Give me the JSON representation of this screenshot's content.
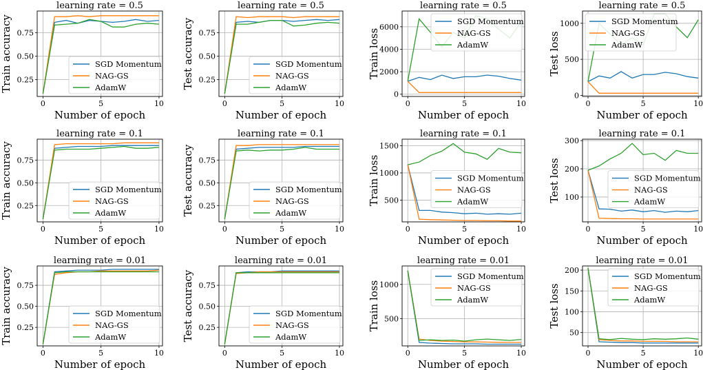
{
  "colors": {
    "SGD Momentum": "#1f77b4",
    "NAG-GS": "#ff7f0e",
    "AdamW": "#2ca02c",
    "grid": "#b0b0b0",
    "axes": "#000000"
  },
  "legend_labels": [
    "SGD Momentum",
    "NAG-GS",
    "AdamW"
  ],
  "chart_data": [
    {
      "type": "line",
      "title": "learning rate = 0.5",
      "xlabel": "Number of epoch",
      "ylabel": "Train accuracy",
      "xlim": [
        -0.5,
        10.3
      ],
      "ylim": [
        0.07,
        0.98
      ],
      "xticks": [
        0,
        5,
        10
      ],
      "yticks": [
        0.25,
        0.5,
        0.75
      ],
      "ytick_labels": [
        "0.25",
        "0.50",
        "0.75"
      ],
      "grid": true,
      "legend": "lower-right",
      "x": [
        0,
        1,
        2,
        3,
        4,
        5,
        6,
        7,
        8,
        9,
        10
      ],
      "series": [
        {
          "name": "SGD Momentum",
          "values": [
            0.1,
            0.86,
            0.88,
            0.85,
            0.88,
            0.87,
            0.86,
            0.87,
            0.89,
            0.87,
            0.88
          ]
        },
        {
          "name": "NAG-GS",
          "values": [
            0.1,
            0.92,
            0.92,
            0.93,
            0.92,
            0.93,
            0.93,
            0.93,
            0.93,
            0.93,
            0.93
          ]
        },
        {
          "name": "AdamW",
          "values": [
            0.1,
            0.83,
            0.84,
            0.85,
            0.89,
            0.87,
            0.81,
            0.81,
            0.84,
            0.85,
            0.84
          ]
        }
      ]
    },
    {
      "type": "line",
      "title": "learning rate = 0.5",
      "xlabel": "Number of epoch",
      "ylabel": "Test accuracy",
      "xlim": [
        -0.5,
        10.3
      ],
      "ylim": [
        0.07,
        0.98
      ],
      "xticks": [
        0,
        5,
        10
      ],
      "yticks": [
        0.25,
        0.5,
        0.75
      ],
      "ytick_labels": [
        "0.25",
        "0.50",
        "0.75"
      ],
      "grid": true,
      "legend": "lower-right",
      "x": [
        0,
        1,
        2,
        3,
        4,
        5,
        6,
        7,
        8,
        9,
        10
      ],
      "series": [
        {
          "name": "SGD Momentum",
          "values": [
            0.1,
            0.86,
            0.87,
            0.86,
            0.88,
            0.88,
            0.87,
            0.88,
            0.89,
            0.88,
            0.89
          ]
        },
        {
          "name": "NAG-GS",
          "values": [
            0.1,
            0.92,
            0.91,
            0.92,
            0.92,
            0.92,
            0.91,
            0.92,
            0.92,
            0.92,
            0.92
          ]
        },
        {
          "name": "AdamW",
          "values": [
            0.1,
            0.84,
            0.84,
            0.86,
            0.88,
            0.88,
            0.82,
            0.83,
            0.85,
            0.86,
            0.85
          ]
        }
      ]
    },
    {
      "type": "line",
      "title": "learning rate = 0.5",
      "xlabel": "Number of epoch",
      "ylabel": "Train loss",
      "xlim": [
        -0.5,
        10.3
      ],
      "ylim": [
        -200,
        7400
      ],
      "xticks": [
        0,
        5,
        10
      ],
      "yticks": [
        0,
        2000,
        4000,
        6000
      ],
      "ytick_labels": [
        "0",
        "2000",
        "4000",
        "6000"
      ],
      "grid": true,
      "legend": "upper-right",
      "x": [
        0,
        1,
        2,
        3,
        4,
        5,
        6,
        7,
        8,
        9,
        10
      ],
      "series": [
        {
          "name": "SGD Momentum",
          "values": [
            1150,
            1500,
            1300,
            1700,
            1400,
            1550,
            1550,
            1700,
            1600,
            1400,
            1250
          ]
        },
        {
          "name": "NAG-GS",
          "values": [
            1150,
            150,
            150,
            150,
            150,
            150,
            150,
            150,
            150,
            150,
            150
          ]
        },
        {
          "name": "AdamW",
          "values": [
            1150,
            6700,
            5500,
            4200,
            5500,
            5000,
            7000,
            6700,
            5800,
            5000,
            6500
          ]
        }
      ]
    },
    {
      "type": "line",
      "title": "learning rate = 0.5",
      "xlabel": "Number of epoch",
      "ylabel": "Test loss",
      "xlim": [
        -0.5,
        10.3
      ],
      "ylim": [
        -15,
        1170
      ],
      "xticks": [
        0,
        5,
        10
      ],
      "yticks": [
        0,
        500,
        1000
      ],
      "ytick_labels": [
        "0",
        "500",
        "1000"
      ],
      "grid": true,
      "legend": "upper-left",
      "x": [
        0,
        1,
        2,
        3,
        4,
        5,
        6,
        7,
        8,
        9,
        10
      ],
      "series": [
        {
          "name": "SGD Momentum",
          "values": [
            190,
            270,
            240,
            330,
            240,
            290,
            290,
            320,
            300,
            260,
            240
          ]
        },
        {
          "name": "NAG-GS",
          "values": [
            190,
            30,
            30,
            30,
            30,
            30,
            30,
            30,
            30,
            30,
            30
          ]
        },
        {
          "name": "AdamW",
          "values": [
            190,
            1000,
            850,
            700,
            800,
            700,
            1130,
            1130,
            950,
            800,
            1050
          ]
        }
      ]
    },
    {
      "type": "line",
      "title": "learning rate = 0.1",
      "xlabel": "Number of epoch",
      "ylabel": "Train accuracy",
      "xlim": [
        -0.5,
        10.3
      ],
      "ylim": [
        0.07,
        0.98
      ],
      "xticks": [
        0,
        5,
        10
      ],
      "yticks": [
        0.25,
        0.5,
        0.75
      ],
      "ytick_labels": [
        "0.25",
        "0.50",
        "0.75"
      ],
      "grid": true,
      "legend": "lower-right",
      "x": [
        0,
        1,
        2,
        3,
        4,
        5,
        6,
        7,
        8,
        9,
        10
      ],
      "series": [
        {
          "name": "SGD Momentum",
          "values": [
            0.1,
            0.88,
            0.89,
            0.9,
            0.9,
            0.9,
            0.91,
            0.91,
            0.91,
            0.91,
            0.91
          ]
        },
        {
          "name": "NAG-GS",
          "values": [
            0.1,
            0.92,
            0.93,
            0.93,
            0.93,
            0.93,
            0.93,
            0.94,
            0.94,
            0.94,
            0.94
          ]
        },
        {
          "name": "AdamW",
          "values": [
            0.1,
            0.86,
            0.87,
            0.87,
            0.87,
            0.88,
            0.89,
            0.9,
            0.88,
            0.88,
            0.89
          ]
        }
      ]
    },
    {
      "type": "line",
      "title": "learning rate = 0.1",
      "xlabel": "Number of epoch",
      "ylabel": "Test accuracy",
      "xlim": [
        -0.5,
        10.3
      ],
      "ylim": [
        0.07,
        0.98
      ],
      "xticks": [
        0,
        5,
        10
      ],
      "yticks": [
        0.25,
        0.5,
        0.75
      ],
      "ytick_labels": [
        "0.25",
        "0.50",
        "0.75"
      ],
      "grid": true,
      "legend": "lower-right",
      "x": [
        0,
        1,
        2,
        3,
        4,
        5,
        6,
        7,
        8,
        9,
        10
      ],
      "series": [
        {
          "name": "SGD Momentum",
          "values": [
            0.1,
            0.87,
            0.88,
            0.89,
            0.89,
            0.89,
            0.89,
            0.9,
            0.9,
            0.9,
            0.9
          ]
        },
        {
          "name": "NAG-GS",
          "values": [
            0.1,
            0.91,
            0.91,
            0.92,
            0.92,
            0.92,
            0.92,
            0.92,
            0.92,
            0.92,
            0.92
          ]
        },
        {
          "name": "AdamW",
          "values": [
            0.1,
            0.85,
            0.86,
            0.85,
            0.86,
            0.86,
            0.87,
            0.89,
            0.87,
            0.87,
            0.87
          ]
        }
      ]
    },
    {
      "type": "line",
      "title": "learning rate = 0.1",
      "xlabel": "Number of epoch",
      "ylabel": "Train loss",
      "xlim": [
        -0.5,
        10.3
      ],
      "ylim": [
        100,
        1620
      ],
      "xticks": [
        0,
        5,
        10
      ],
      "yticks": [
        500,
        1000,
        1500
      ],
      "ytick_labels": [
        "500",
        "1000",
        "1500"
      ],
      "grid": true,
      "legend": "center-right",
      "x": [
        0,
        1,
        2,
        3,
        4,
        5,
        6,
        7,
        8,
        9,
        10
      ],
      "series": [
        {
          "name": "SGD Momentum",
          "values": [
            1150,
            310,
            310,
            280,
            270,
            250,
            260,
            240,
            250,
            240,
            260
          ]
        },
        {
          "name": "NAG-GS",
          "values": [
            1150,
            150,
            140,
            135,
            130,
            125,
            125,
            120,
            120,
            115,
            115
          ]
        },
        {
          "name": "AdamW",
          "values": [
            1150,
            1200,
            1320,
            1400,
            1540,
            1380,
            1350,
            1250,
            1450,
            1380,
            1370
          ]
        }
      ]
    },
    {
      "type": "line",
      "title": "learning rate = 0.1",
      "xlabel": "Number of epoch",
      "ylabel": "Test loss",
      "xlim": [
        -0.5,
        10.3
      ],
      "ylim": [
        12,
        305
      ],
      "xticks": [
        0,
        5,
        10
      ],
      "yticks": [
        100,
        200,
        300
      ],
      "ytick_labels": [
        "100",
        "200",
        "300"
      ],
      "grid": true,
      "legend": "center-right",
      "x": [
        0,
        1,
        2,
        3,
        4,
        5,
        6,
        7,
        8,
        9,
        10
      ],
      "series": [
        {
          "name": "SGD Momentum",
          "values": [
            195,
            58,
            57,
            50,
            54,
            48,
            52,
            46,
            50,
            48,
            52
          ]
        },
        {
          "name": "NAG-GS",
          "values": [
            195,
            25,
            24,
            23,
            23,
            22,
            22,
            22,
            22,
            22,
            22
          ]
        },
        {
          "name": "AdamW",
          "values": [
            195,
            210,
            235,
            255,
            290,
            250,
            255,
            230,
            265,
            255,
            255
          ]
        }
      ]
    },
    {
      "type": "line",
      "title": "learning rate = 0.01",
      "xlabel": "Number of epoch",
      "ylabel": "Train accuracy",
      "xlim": [
        -0.5,
        10.3
      ],
      "ylim": [
        0.03,
        0.98
      ],
      "xticks": [
        0,
        5,
        10
      ],
      "yticks": [
        0.25,
        0.5,
        0.75
      ],
      "ytick_labels": [
        "0.25",
        "0.50",
        "0.75"
      ],
      "grid": true,
      "legend": "lower-right",
      "x": [
        0,
        1,
        2,
        3,
        4,
        5,
        6,
        7,
        8,
        9,
        10
      ],
      "series": [
        {
          "name": "SGD Momentum",
          "values": [
            0.05,
            0.91,
            0.92,
            0.93,
            0.93,
            0.93,
            0.94,
            0.94,
            0.94,
            0.94,
            0.94
          ]
        },
        {
          "name": "NAG-GS",
          "values": [
            0.05,
            0.88,
            0.9,
            0.91,
            0.91,
            0.92,
            0.92,
            0.92,
            0.92,
            0.92,
            0.93
          ]
        },
        {
          "name": "AdamW",
          "values": [
            0.05,
            0.9,
            0.91,
            0.91,
            0.91,
            0.91,
            0.91,
            0.91,
            0.91,
            0.91,
            0.91
          ]
        }
      ]
    },
    {
      "type": "line",
      "title": "learning rate = 0.01",
      "xlabel": "Number of epoch",
      "ylabel": "Test accuracy",
      "xlim": [
        -0.5,
        10.3
      ],
      "ylim": [
        0.03,
        0.98
      ],
      "xticks": [
        0,
        5,
        10
      ],
      "yticks": [
        0.25,
        0.5,
        0.75
      ],
      "ytick_labels": [
        "0.25",
        "0.50",
        "0.75"
      ],
      "grid": true,
      "legend": "lower-right",
      "x": [
        0,
        1,
        2,
        3,
        4,
        5,
        6,
        7,
        8,
        9,
        10
      ],
      "series": [
        {
          "name": "SGD Momentum",
          "values": [
            0.05,
            0.9,
            0.91,
            0.91,
            0.91,
            0.92,
            0.92,
            0.92,
            0.92,
            0.92,
            0.92
          ]
        },
        {
          "name": "NAG-GS",
          "values": [
            0.05,
            0.89,
            0.9,
            0.91,
            0.91,
            0.91,
            0.91,
            0.91,
            0.91,
            0.91,
            0.91
          ]
        },
        {
          "name": "AdamW",
          "values": [
            0.05,
            0.9,
            0.9,
            0.9,
            0.9,
            0.9,
            0.9,
            0.9,
            0.9,
            0.9,
            0.9
          ]
        }
      ]
    },
    {
      "type": "line",
      "title": "learning rate = 0.01",
      "xlabel": "Number of epoch",
      "ylabel": "Train loss",
      "xlim": [
        -0.5,
        10.3
      ],
      "ylim": [
        100,
        1270
      ],
      "xticks": [
        0,
        5,
        10
      ],
      "yticks": [
        500,
        1000
      ],
      "ytick_labels": [
        "500",
        "1000"
      ],
      "grid": true,
      "legend": "upper-right",
      "x": [
        0,
        1,
        2,
        3,
        4,
        5,
        6,
        7,
        8,
        9,
        10
      ],
      "series": [
        {
          "name": "SGD Momentum",
          "values": [
            1200,
            150,
            140,
            135,
            130,
            130,
            130,
            125,
            125,
            125,
            125
          ]
        },
        {
          "name": "NAG-GS",
          "values": [
            1200,
            200,
            180,
            170,
            165,
            160,
            158,
            155,
            152,
            150,
            150
          ]
        },
        {
          "name": "AdamW",
          "values": [
            1200,
            180,
            190,
            180,
            185,
            170,
            190,
            200,
            190,
            180,
            195
          ]
        }
      ]
    },
    {
      "type": "line",
      "title": "learning rate = 0.01",
      "xlabel": "Number of epoch",
      "ylabel": "Test loss",
      "xlim": [
        -0.5,
        10.3
      ],
      "ylim": [
        18,
        210
      ],
      "xticks": [
        0,
        5,
        10
      ],
      "yticks": [
        50,
        100,
        150,
        200
      ],
      "ytick_labels": [
        "50",
        "100",
        "150",
        "200"
      ],
      "grid": true,
      "legend": "upper-right",
      "x": [
        0,
        1,
        2,
        3,
        4,
        5,
        6,
        7,
        8,
        9,
        10
      ],
      "series": [
        {
          "name": "SGD Momentum",
          "values": [
            205,
            28,
            27,
            26,
            26,
            25,
            25,
            25,
            25,
            25,
            25
          ]
        },
        {
          "name": "NAG-GS",
          "values": [
            205,
            33,
            31,
            30,
            30,
            29,
            29,
            29,
            28,
            28,
            28
          ]
        },
        {
          "name": "AdamW",
          "values": [
            205,
            35,
            33,
            36,
            34,
            33,
            35,
            34,
            35,
            37,
            34
          ]
        }
      ]
    }
  ]
}
